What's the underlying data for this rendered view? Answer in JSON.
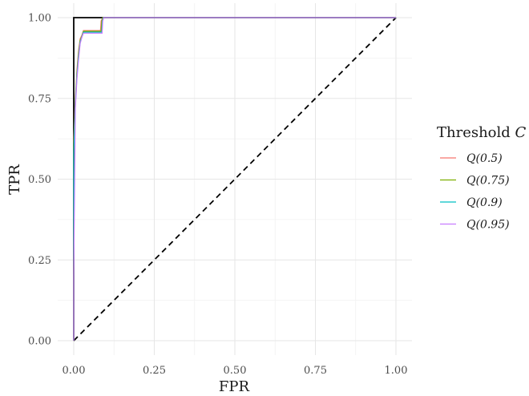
{
  "chart_data": {
    "type": "line",
    "xlabel": "FPR",
    "ylabel": "TPR",
    "xlim": [
      0,
      1
    ],
    "ylim": [
      0,
      1
    ],
    "x_ticks": [
      "0.00",
      "0.25",
      "0.50",
      "0.75",
      "1.00"
    ],
    "y_ticks": [
      "0.00",
      "0.25",
      "0.50",
      "0.75",
      "1.00"
    ],
    "grid": true,
    "legend": {
      "title": "Threshold C",
      "title_text": "Threshold ",
      "title_symbol": "C",
      "placement": "right"
    },
    "reference_lines": [
      {
        "style": "solid",
        "color": "#000000",
        "x": [
          0,
          0,
          1
        ],
        "y": [
          0,
          1,
          1
        ]
      },
      {
        "style": "dashed",
        "color": "#000000",
        "x": [
          0,
          1
        ],
        "y": [
          0,
          1
        ]
      }
    ],
    "series": [
      {
        "name": "Q(0.5)",
        "color": "#F8766D",
        "x": [
          0,
          0,
          0.005,
          0.01,
          0.015,
          0.02,
          0.025,
          0.03,
          0.04,
          0.083,
          0.085,
          0.09,
          1.0
        ],
        "y": [
          0,
          0.62,
          0.75,
          0.84,
          0.9,
          0.935,
          0.945,
          0.96,
          0.96,
          0.96,
          0.99,
          1.0,
          1.0
        ]
      },
      {
        "name": "Q(0.75)",
        "color": "#7CAE00",
        "x": [
          0,
          0,
          0.005,
          0.01,
          0.015,
          0.02,
          0.025,
          0.03,
          0.04,
          0.085,
          0.087,
          0.09,
          1.0
        ],
        "y": [
          0,
          0.6,
          0.74,
          0.83,
          0.89,
          0.93,
          0.942,
          0.958,
          0.958,
          0.958,
          0.99,
          1.0,
          1.0
        ]
      },
      {
        "name": "Q(0.9)",
        "color": "#00BFC4",
        "x": [
          0,
          0,
          0.005,
          0.01,
          0.015,
          0.02,
          0.025,
          0.03,
          0.04,
          0.087,
          0.089,
          0.092,
          1.0
        ],
        "y": [
          0,
          0.58,
          0.73,
          0.82,
          0.88,
          0.925,
          0.94,
          0.955,
          0.955,
          0.955,
          0.99,
          1.0,
          1.0
        ]
      },
      {
        "name": "Q(0.95)",
        "color": "#C77CFF",
        "x": [
          0,
          0,
          0.005,
          0.01,
          0.015,
          0.02,
          0.025,
          0.03,
          0.04,
          0.088,
          0.09,
          0.093,
          1.0
        ],
        "y": [
          0,
          0.2,
          0.72,
          0.81,
          0.87,
          0.92,
          0.938,
          0.952,
          0.952,
          0.952,
          0.99,
          1.0,
          1.0
        ]
      }
    ]
  }
}
